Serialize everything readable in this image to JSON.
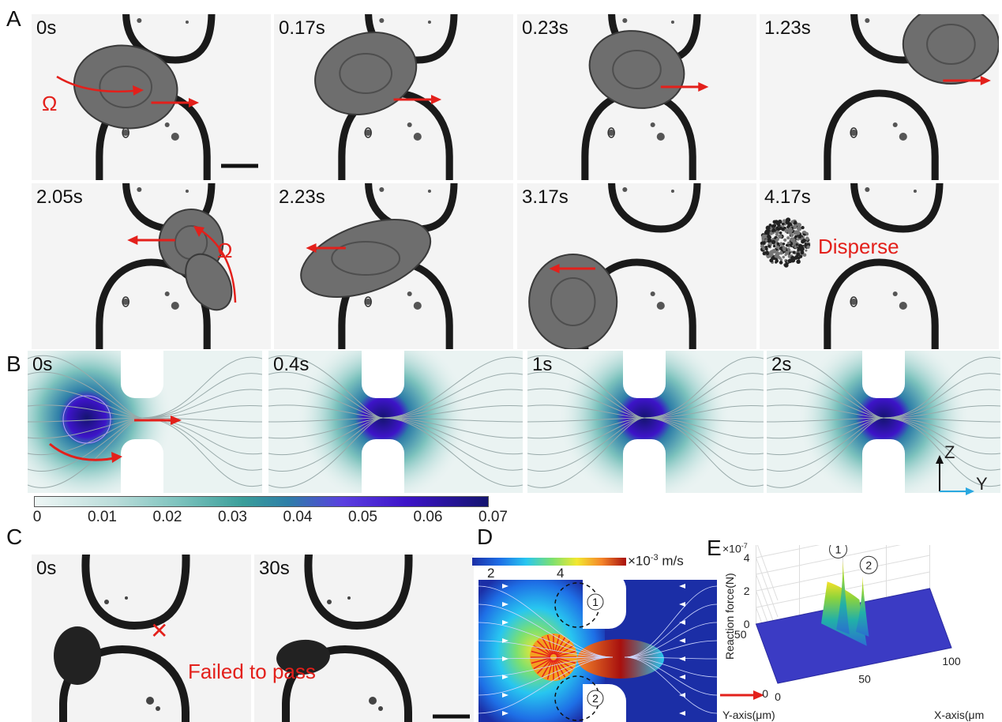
{
  "panels": {
    "A": "A",
    "B": "B",
    "C": "C",
    "D": "D",
    "E": "E"
  },
  "panelA": {
    "frames": [
      "0s",
      "0.17s",
      "0.23s",
      "1.23s",
      "2.05s",
      "2.23s",
      "3.17s",
      "4.17s"
    ],
    "omega": "Ω",
    "disperse": "Disperse"
  },
  "panelB": {
    "frames": [
      "0s",
      "0.4s",
      "1s",
      "2s"
    ],
    "axis_z": "Z",
    "axis_y": "Y",
    "colorbar_ticks": [
      "0",
      "0.01",
      "0.02",
      "0.03",
      "0.04",
      "0.05",
      "0.06",
      "0.07"
    ]
  },
  "panelC": {
    "frames": [
      "0s",
      "30s"
    ],
    "mark": "✕",
    "failed": "Failed to pass"
  },
  "panelD": {
    "ticks": [
      "2",
      "4"
    ],
    "unit_exp": "×10",
    "unit_pow": "-3",
    "unit": "m/s",
    "marker1": "1",
    "marker2": "2"
  },
  "chart_data": {
    "type": "surface",
    "exponent_label": "×10",
    "exponent_power": "-7",
    "zlabel": "Reaction force(N)",
    "xlabel": "X-axis(μm",
    "ylabel": "Y-axis(μm)",
    "z_ticks": [
      "0",
      "2",
      "4"
    ],
    "x_ticks": [
      "0",
      "50",
      "100"
    ],
    "y_ticks": [
      "0",
      "50"
    ],
    "peaks": [
      {
        "marker": "1",
        "x": 45,
        "y": 30,
        "z": 4.3
      },
      {
        "marker": "2",
        "x": 55,
        "y": 25,
        "z": 3.5
      }
    ],
    "zlim": [
      0,
      5
    ],
    "xlim": [
      0,
      100
    ],
    "ylim": [
      0,
      50
    ]
  },
  "colors": {
    "red": "#e3201b",
    "cyan": "#2aa8e0"
  }
}
